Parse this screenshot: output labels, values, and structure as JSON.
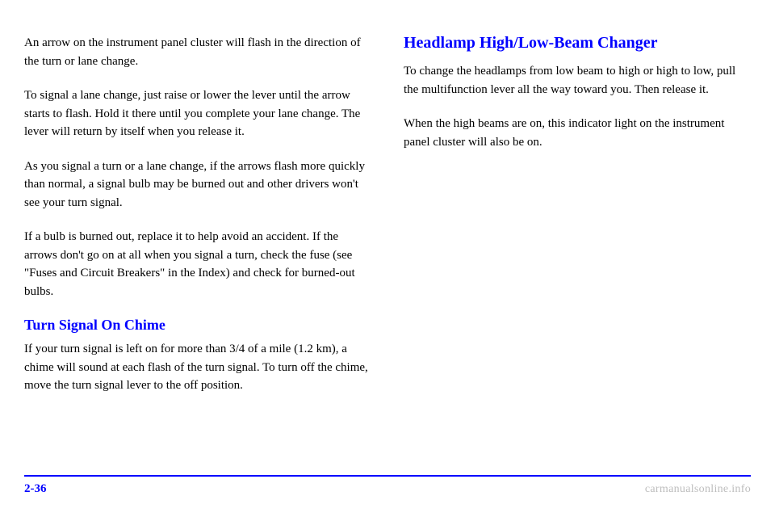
{
  "left": {
    "para1": "An arrow on the instrument panel cluster will flash in the direction of the turn or lane change.",
    "para2": "To signal a lane change, just raise or lower the lever until the arrow starts to flash. Hold it there until you complete your lane change. The lever will return by itself when you release it.",
    "para3": "As you signal a turn or a lane change, if the arrows flash more quickly than normal, a signal bulb may be burned out and other drivers won't see your turn signal.",
    "para4": "If a bulb is burned out, replace it to help avoid an accident. If the arrows don't go on at all when you signal a turn, check the fuse (see \"Fuses and Circuit Breakers\" in the Index) and check for burned-out bulbs.",
    "subhead": "Turn Signal On Chime",
    "para5": "If your turn signal is left on for more than 3/4 of a mile (1.2 km), a chime will sound at each flash of the turn signal. To turn off the chime, move the turn signal lever to the off position."
  },
  "right": {
    "head": "Headlamp High/Low-Beam Changer",
    "para1": "To change the headlamps from low beam to high or high to low, pull the multifunction lever all the way toward you. Then release it.",
    "para2": "When the high beams are on, this indicator light on the instrument panel cluster will also be on."
  },
  "pageno": "2-36",
  "watermark": "carmanualsonline.info",
  "colors": {
    "accent": "#0000ff",
    "text": "#000000",
    "watermark": "#bdbdbd"
  }
}
